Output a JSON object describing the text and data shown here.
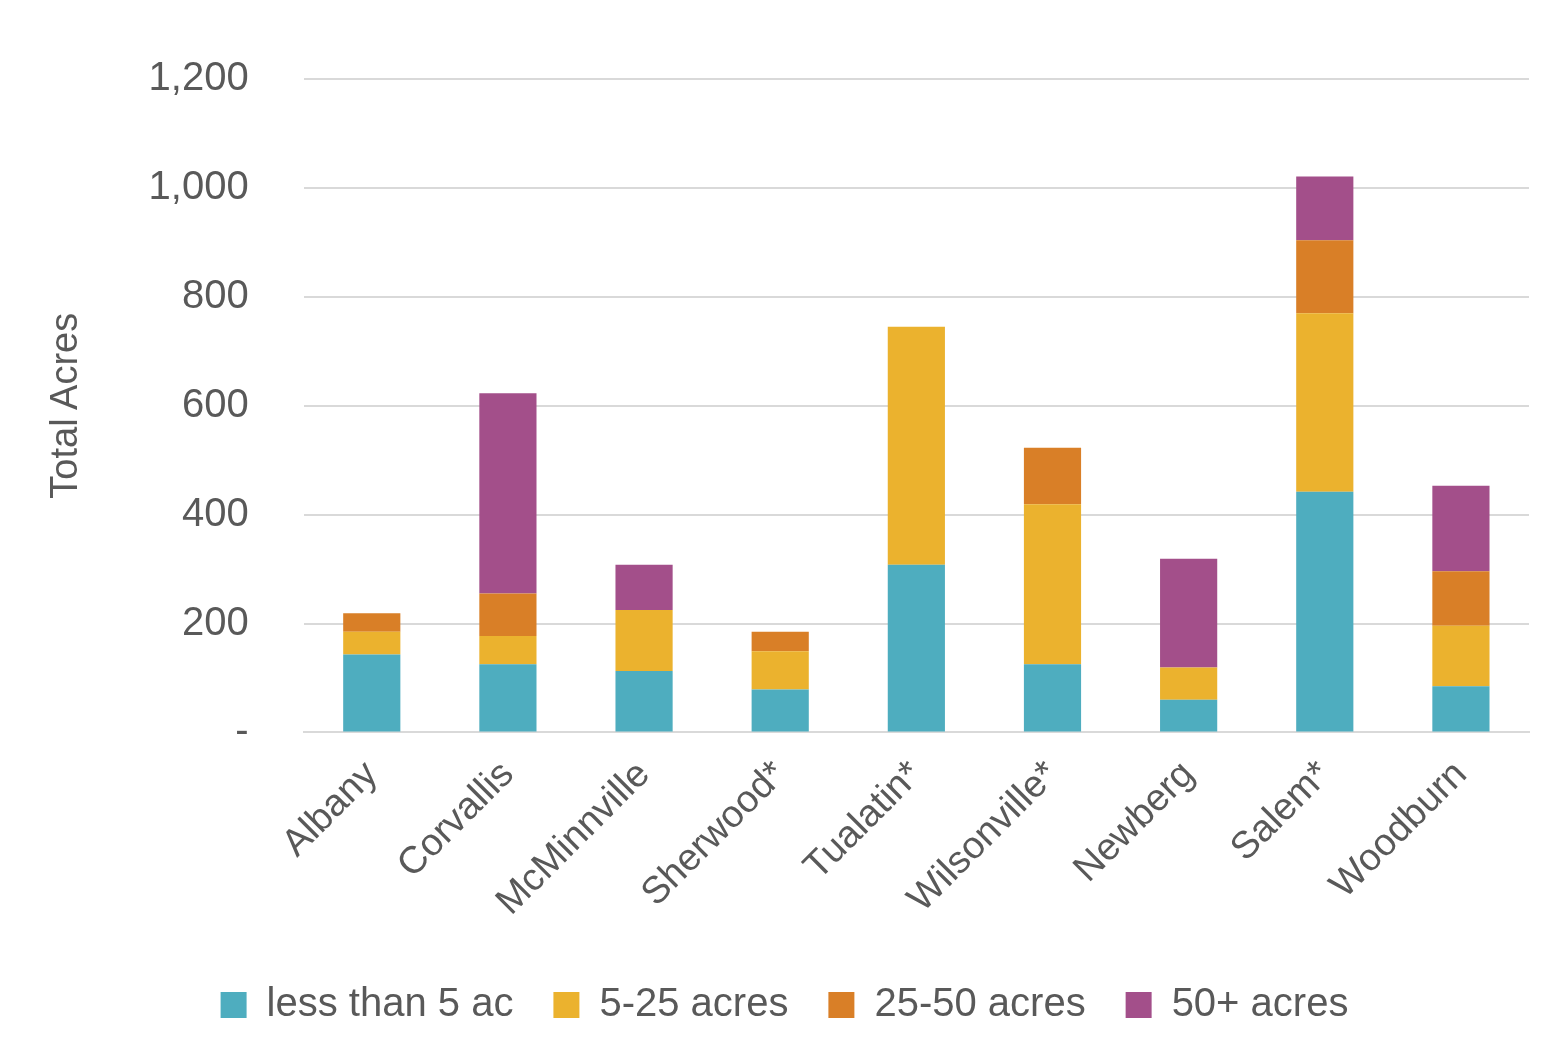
{
  "chart_data": {
    "type": "bar",
    "stacked": true,
    "ylabel": "Total Acres",
    "categories": [
      "Albany",
      "Corvallis",
      "McMinnville",
      "Sherwood*",
      "Tualatin*",
      "Wilsonville*",
      "Newberg",
      "Salem*",
      "Woodburn"
    ],
    "series": [
      {
        "name": "less than 5 ac",
        "color": "#4eadbf",
        "values": [
          143,
          125,
          113,
          79,
          308,
          125,
          60,
          442,
          85
        ]
      },
      {
        "name": "5-25 acres",
        "color": "#ebb22e",
        "values": [
          42,
          52,
          112,
          70,
          437,
          294,
          59,
          328,
          111
        ]
      },
      {
        "name": "25-50 acres",
        "color": "#d97f27",
        "values": [
          34,
          78,
          null,
          36,
          null,
          104,
          null,
          134,
          100
        ]
      },
      {
        "name": "50+ acres",
        "color": "#a34f8a",
        "values": [
          null,
          368,
          83,
          null,
          null,
          null,
          200,
          117,
          157
        ]
      }
    ],
    "ylim": [
      0,
      1200
    ],
    "yticks": [
      {
        "value": 0,
        "label": "-"
      },
      200,
      400,
      600,
      800,
      {
        "value": 1000,
        "label": "1,000"
      },
      {
        "value": 1200,
        "label": "1,200"
      }
    ],
    "grid": "y",
    "legend": "bottom"
  }
}
